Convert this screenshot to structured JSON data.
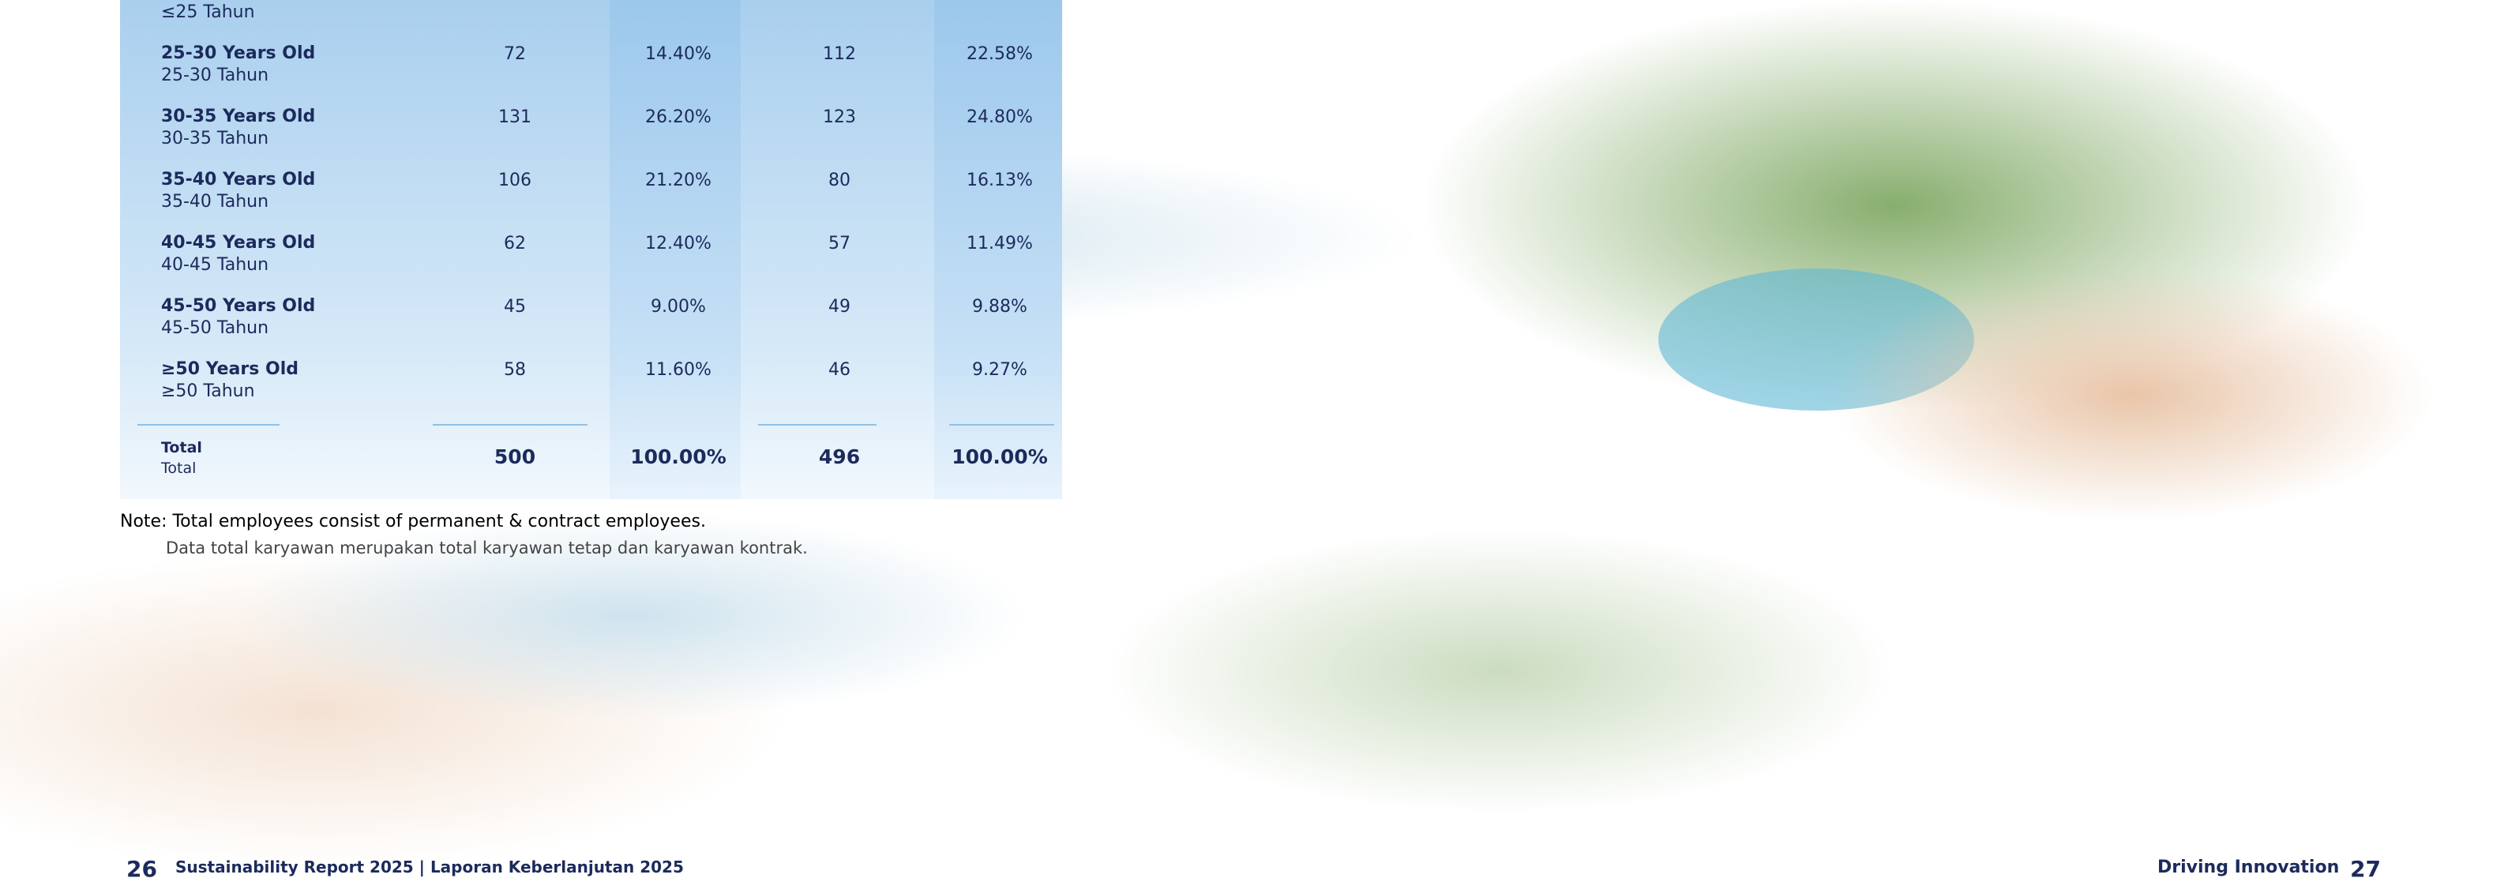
{
  "table": {
    "first_row_partial": {
      "label_id": "≤25 Tahun"
    },
    "rows": [
      {
        "label_en": "25-30 Years Old",
        "label_id": "25-30 Tahun",
        "cells": [
          "72",
          "14.40%",
          "112",
          "22.58%"
        ]
      },
      {
        "label_en": "30-35 Years Old",
        "label_id": "30-35 Tahun",
        "cells": [
          "131",
          "26.20%",
          "123",
          "24.80%"
        ]
      },
      {
        "label_en": "35-40 Years Old",
        "label_id": "35-40 Tahun",
        "cells": [
          "106",
          "21.20%",
          "80",
          "16.13%"
        ]
      },
      {
        "label_en": "40-45 Years Old",
        "label_id": "40-45 Tahun",
        "cells": [
          "62",
          "12.40%",
          "57",
          "11.49%"
        ]
      },
      {
        "label_en": "45-50 Years Old",
        "label_id": "45-50 Tahun",
        "cells": [
          "45",
          "9.00%",
          "49",
          "9.88%"
        ]
      },
      {
        "label_en": "≥50 Years Old",
        "label_id": "≥50 Tahun",
        "cells": [
          "58",
          "11.60%",
          "46",
          "9.27%"
        ]
      }
    ],
    "total": {
      "label_en": "Total",
      "label_id": "Total",
      "cells": [
        "500",
        "100.00%",
        "496",
        "100.00%"
      ]
    }
  },
  "note": {
    "en": "Note: Total employees consist of permanent & contract employees.",
    "id": "Data total karyawan merupakan total karyawan tetap dan karyawan kontrak."
  },
  "footer": {
    "left_page": "26",
    "left_title": "Sustainability Report 2025 | Laporan Keberlanjutan 2025",
    "right_title": "Driving Innovation",
    "right_page": "27"
  }
}
